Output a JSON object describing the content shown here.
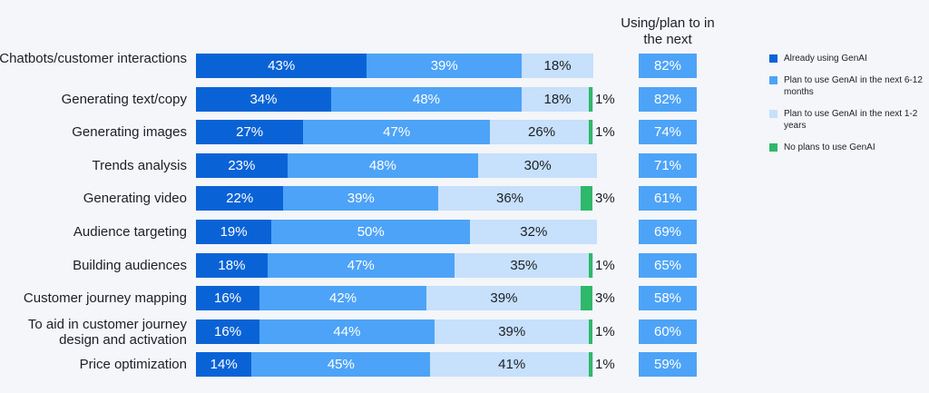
{
  "chart_data": {
    "type": "bar",
    "orientation": "horizontal",
    "stacked": true,
    "unit": "%",
    "categories": [
      "Chatbots/customer interactions",
      "Generating text/copy",
      "Generating images",
      "Trends analysis",
      "Generating video",
      "Audience targeting",
      "Building audiences",
      "Customer journey mapping",
      "To aid in customer journey design and activation",
      "Price optimization"
    ],
    "series": [
      {
        "name": "Already using GenAI",
        "color": "#0a63d6",
        "values": [
          43,
          34,
          27,
          23,
          22,
          19,
          18,
          16,
          16,
          14
        ]
      },
      {
        "name": "Plan to use GenAI in the next 6-12 months",
        "color": "#4da3f7",
        "values": [
          39,
          48,
          47,
          48,
          39,
          50,
          47,
          42,
          44,
          45
        ]
      },
      {
        "name": "Plan to use GenAI in the next 1-2 years",
        "color": "#c7e0fb",
        "values": [
          18,
          18,
          26,
          30,
          36,
          32,
          35,
          39,
          39,
          41
        ]
      },
      {
        "name": "No plans to use GenAI",
        "color": "#2fb86a",
        "values": [
          null,
          1,
          1,
          null,
          3,
          null,
          1,
          3,
          1,
          1
        ]
      }
    ],
    "totals": {
      "title": "Using/plan to in the next",
      "values": [
        82,
        82,
        74,
        71,
        61,
        69,
        65,
        58,
        60,
        59
      ]
    },
    "legend_position": "right",
    "grid": false
  }
}
